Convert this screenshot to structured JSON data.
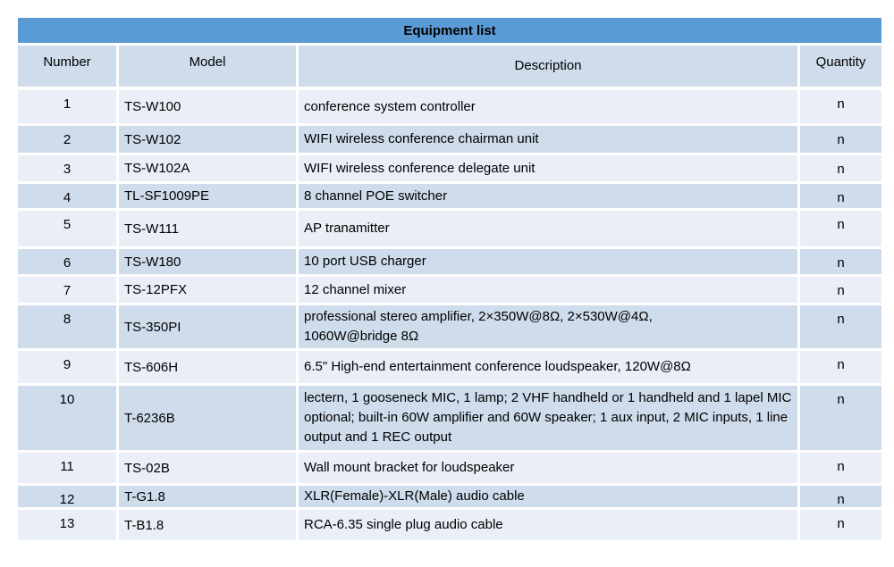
{
  "table": {
    "title": "Equipment list",
    "columns": {
      "number": "Number",
      "model": "Model",
      "description": "Description",
      "quantity": "Quantity"
    },
    "rows": [
      {
        "number": "1",
        "model": "TS-W100",
        "description": "conference system controller",
        "quantity": "n"
      },
      {
        "number": "2",
        "model": "TS-W102",
        "description": "WIFI wireless conference chairman unit",
        "quantity": "n"
      },
      {
        "number": "3",
        "model": "TS-W102A",
        "description": "WIFI wireless conference delegate unit",
        "quantity": "n"
      },
      {
        "number": "4",
        "model": "TL-SF1009PE",
        "description": "8 channel POE switcher",
        "quantity": "n"
      },
      {
        "number": "5",
        "model": "TS-W111",
        "description": "AP tranamitter",
        "quantity": "n"
      },
      {
        "number": "6",
        "model": "TS-W180",
        "description": "10 port USB charger",
        "quantity": "n"
      },
      {
        "number": "7",
        "model": "TS-12PFX",
        "description": "12 channel mixer",
        "quantity": "n"
      },
      {
        "number": "8",
        "model": "TS-350PI",
        "description": "professional stereo amplifier, 2×350W@8Ω, 2×530W@4Ω, 1060W@bridge 8Ω",
        "quantity": "n"
      },
      {
        "number": "9",
        "model": "TS-606H",
        "description": "6.5\" High-end entertainment conference loudspeaker, 120W@8Ω",
        "quantity": "n"
      },
      {
        "number": "10",
        "model": "T-6236B",
        "description": "lectern, 1 gooseneck MIC, 1 lamp; 2 VHF handheld or 1 handheld and 1 lapel MIC optional; built-in 60W amplifier and 60W speaker; 1 aux input, 2 MIC inputs, 1 line output and 1 REC output",
        "quantity": "n"
      },
      {
        "number": "11",
        "model": "TS-02B",
        "description": "Wall mount bracket for loudspeaker",
        "quantity": "n"
      },
      {
        "number": "12",
        "model": "T-G1.8",
        "description": "XLR(Female)-XLR(Male) audio cable",
        "quantity": "n"
      },
      {
        "number": "13",
        "model": "T-B1.8",
        "description": "RCA-6.35 single plug audio cable",
        "quantity": "n"
      }
    ]
  },
  "colors": {
    "title_bar_bg": "#5B9BD5",
    "band_dark": "#CFDCEC",
    "band_light": "#E9EEF7",
    "grid": "#FFFFFF",
    "text": "#000000"
  }
}
